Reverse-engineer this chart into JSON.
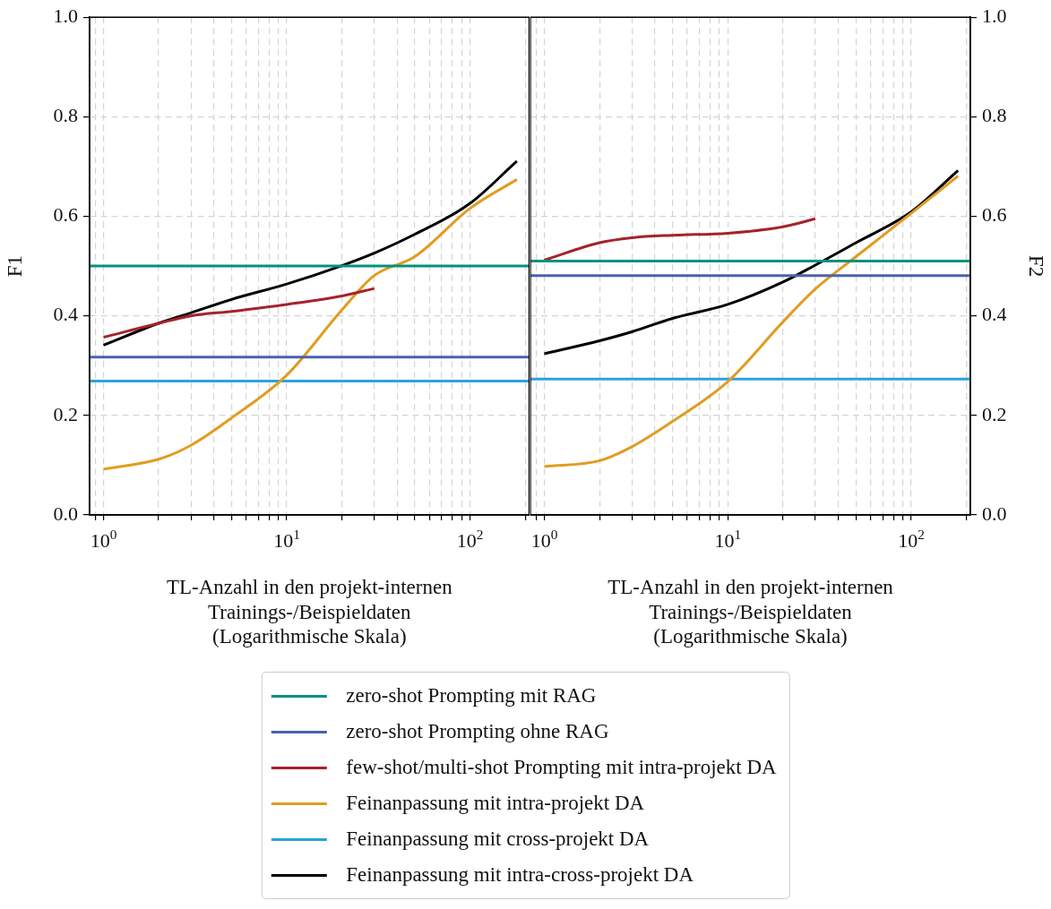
{
  "chart_data": [
    {
      "type": "line",
      "xlabel": "TL-Anzahl in den projekt-internen\nTrainings-/Beispieldaten\n(Logarithmische Skala)",
      "ylabel": "F1",
      "log": "x",
      "grid": true,
      "legend": "bottom",
      "marker": "none",
      "line_style": "solid",
      "xlim": [
        0.84,
        210
      ],
      "xticks": [
        {
          "value": 0.9,
          "label": null
        },
        {
          "value": 1,
          "label": "10$^{0}$"
        },
        {
          "value": 2,
          "label": null
        },
        {
          "value": 3,
          "label": null
        },
        {
          "value": 4,
          "label": null
        },
        {
          "value": 5,
          "label": null
        },
        {
          "value": 6,
          "label": null
        },
        {
          "value": 7,
          "label": null
        },
        {
          "value": 8,
          "label": null
        },
        {
          "value": 9,
          "label": null
        },
        {
          "value": 10,
          "label": "10$^{1}$"
        },
        {
          "value": 20,
          "label": null
        },
        {
          "value": 30,
          "label": null
        },
        {
          "value": 40,
          "label": null
        },
        {
          "value": 50,
          "label": null
        },
        {
          "value": 60,
          "label": null
        },
        {
          "value": 70,
          "label": null
        },
        {
          "value": 80,
          "label": null
        },
        {
          "value": 90,
          "label": null
        },
        {
          "value": 100,
          "label": "10$^{2}$"
        },
        {
          "value": 200,
          "label": null
        }
      ],
      "ylim": [
        0,
        1
      ],
      "yticks": [
        {
          "value": 0,
          "label": "0.0"
        },
        {
          "value": 0.2,
          "label": "0.2"
        },
        {
          "value": 0.4,
          "label": "0.4"
        },
        {
          "value": 0.6,
          "label": "0.6"
        },
        {
          "value": 0.8,
          "label": "0.8"
        },
        {
          "value": 1,
          "label": "1.0"
        }
      ],
      "series": [
        {
          "name": "zero-shot Prompting mit RAG",
          "color": "#00927f",
          "x": [
            0.84,
            210
          ],
          "values": [
            0.5,
            0.5
          ]
        },
        {
          "name": "zero-shot Prompting ohne RAG",
          "color": "#4a62ad",
          "x": [
            0.84,
            210
          ],
          "values": [
            0.317,
            0.317
          ]
        },
        {
          "name": "few-shot/multi-shot Prompting mit intra-projekt DA",
          "color": "#a5232a",
          "x": [
            1,
            2,
            3,
            5,
            10,
            20,
            30
          ],
          "values": [
            0.357,
            0.385,
            0.4,
            0.409,
            0.423,
            0.44,
            0.455
          ]
        },
        {
          "name": "Feinanpassung mit intra-projekt DA",
          "color": "#e19c20",
          "x": [
            1,
            2,
            3,
            5,
            10,
            20,
            30,
            50,
            100,
            180
          ],
          "values": [
            0.092,
            0.112,
            0.14,
            0.195,
            0.281,
            0.412,
            0.481,
            0.519,
            0.616,
            0.674
          ]
        },
        {
          "name": "Feinanpassung mit cross-projekt DA",
          "color": "#2ba2df",
          "x": [
            0.84,
            210
          ],
          "values": [
            0.269,
            0.269
          ]
        },
        {
          "name": "Feinanpassung mit intra-cross-projekt DA",
          "color": "#000000",
          "x": [
            1,
            2,
            3,
            5,
            10,
            20,
            30,
            50,
            100,
            180
          ],
          "values": [
            0.341,
            0.385,
            0.406,
            0.433,
            0.464,
            0.501,
            0.526,
            0.564,
            0.626,
            0.711
          ]
        }
      ]
    },
    {
      "type": "line",
      "xlabel": "TL-Anzahl in den projekt-internen\nTrainings-/Beispieldaten\n(Logarithmische Skala)",
      "ylabel": "F2",
      "log": "x",
      "grid": true,
      "legend": false,
      "marker": "none",
      "line_style": "solid",
      "xlim": [
        0.84,
        210
      ],
      "xticks": [
        {
          "value": 0.9,
          "label": null
        },
        {
          "value": 1,
          "label": "10$^{0}$"
        },
        {
          "value": 2,
          "label": null
        },
        {
          "value": 3,
          "label": null
        },
        {
          "value": 4,
          "label": null
        },
        {
          "value": 5,
          "label": null
        },
        {
          "value": 6,
          "label": null
        },
        {
          "value": 7,
          "label": null
        },
        {
          "value": 8,
          "label": null
        },
        {
          "value": 9,
          "label": null
        },
        {
          "value": 10,
          "label": "10$^{1}$"
        },
        {
          "value": 20,
          "label": null
        },
        {
          "value": 30,
          "label": null
        },
        {
          "value": 40,
          "label": null
        },
        {
          "value": 50,
          "label": null
        },
        {
          "value": 60,
          "label": null
        },
        {
          "value": 70,
          "label": null
        },
        {
          "value": 80,
          "label": null
        },
        {
          "value": 90,
          "label": null
        },
        {
          "value": 100,
          "label": "10$^{2}$"
        },
        {
          "value": 200,
          "label": null
        }
      ],
      "ylim": [
        0,
        1
      ],
      "yticks": [
        {
          "value": 0,
          "label": "0.0"
        },
        {
          "value": 0.2,
          "label": "0.2"
        },
        {
          "value": 0.4,
          "label": "0.4"
        },
        {
          "value": 0.6,
          "label": "0.6"
        },
        {
          "value": 0.8,
          "label": "0.8"
        },
        {
          "value": 1,
          "label": "1.0"
        }
      ],
      "series": [
        {
          "color": "#00927f",
          "x": [
            0.84,
            210
          ],
          "values": [
            0.51,
            0.51
          ]
        },
        {
          "color": "#4a62ad",
          "x": [
            0.84,
            210
          ],
          "values": [
            0.481,
            0.481
          ]
        },
        {
          "color": "#a5232a",
          "x": [
            1,
            2,
            3,
            5,
            10,
            20,
            30
          ],
          "values": [
            0.512,
            0.547,
            0.557,
            0.562,
            0.566,
            0.579,
            0.595
          ]
        },
        {
          "color": "#e19c20",
          "x": [
            1,
            2,
            3,
            5,
            10,
            20,
            30,
            50,
            100,
            180
          ],
          "values": [
            0.097,
            0.109,
            0.137,
            0.188,
            0.268,
            0.388,
            0.454,
            0.519,
            0.606,
            0.681
          ]
        },
        {
          "color": "#2ba2df",
          "x": [
            0.84,
            210
          ],
          "values": [
            0.273,
            0.273
          ]
        },
        {
          "color": "#000000",
          "x": [
            1,
            2,
            3,
            5,
            10,
            20,
            30,
            50,
            100,
            180
          ],
          "values": [
            0.324,
            0.35,
            0.368,
            0.395,
            0.423,
            0.468,
            0.502,
            0.547,
            0.609,
            0.692
          ]
        }
      ]
    }
  ]
}
